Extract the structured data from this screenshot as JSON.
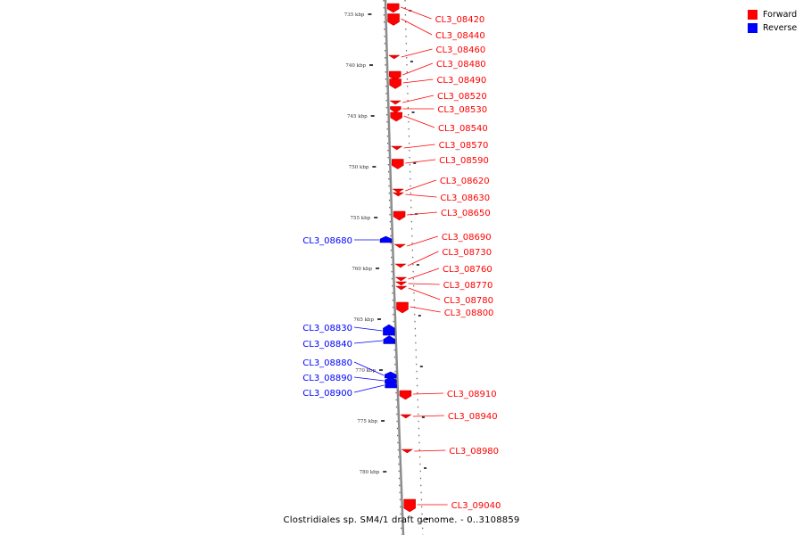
{
  "legend": [
    {
      "label": "Forward",
      "color": "#ff0000"
    },
    {
      "label": "Reverse",
      "color": "#0000ff"
    }
  ],
  "caption": "Clostridiales sp. SM4/1 draft genome. - 0..3108859",
  "scale": {
    "tick_labels": [
      "735 kbp",
      "740 kbp",
      "745 kbp",
      "750 kbp",
      "755 kbp",
      "760 kbp",
      "765 kbp",
      "770 kbp",
      "775 kbp",
      "780 kbp"
    ]
  },
  "genes": [
    {
      "id": "CL3_08420",
      "strand": "forward"
    },
    {
      "id": "CL3_08440",
      "strand": "forward"
    },
    {
      "id": "CL3_08460",
      "strand": "forward"
    },
    {
      "id": "CL3_08480",
      "strand": "forward"
    },
    {
      "id": "CL3_08490",
      "strand": "forward"
    },
    {
      "id": "CL3_08520",
      "strand": "forward"
    },
    {
      "id": "CL3_08530",
      "strand": "forward"
    },
    {
      "id": "CL3_08540",
      "strand": "forward"
    },
    {
      "id": "CL3_08570",
      "strand": "forward"
    },
    {
      "id": "CL3_08590",
      "strand": "forward"
    },
    {
      "id": "CL3_08620",
      "strand": "forward"
    },
    {
      "id": "CL3_08630",
      "strand": "forward"
    },
    {
      "id": "CL3_08650",
      "strand": "forward"
    },
    {
      "id": "CL3_08680",
      "strand": "reverse"
    },
    {
      "id": "CL3_08690",
      "strand": "forward"
    },
    {
      "id": "CL3_08730",
      "strand": "forward"
    },
    {
      "id": "CL3_08760",
      "strand": "forward"
    },
    {
      "id": "CL3_08770",
      "strand": "forward"
    },
    {
      "id": "CL3_08780",
      "strand": "forward"
    },
    {
      "id": "CL3_08800",
      "strand": "forward"
    },
    {
      "id": "CL3_08830",
      "strand": "reverse"
    },
    {
      "id": "CL3_08840",
      "strand": "reverse"
    },
    {
      "id": "CL3_08880",
      "strand": "reverse"
    },
    {
      "id": "CL3_08890",
      "strand": "reverse"
    },
    {
      "id": "CL3_08900",
      "strand": "reverse"
    },
    {
      "id": "CL3_08910",
      "strand": "forward"
    },
    {
      "id": "CL3_08940",
      "strand": "forward"
    },
    {
      "id": "CL3_08980",
      "strand": "forward"
    },
    {
      "id": "CL3_09040",
      "strand": "forward"
    }
  ]
}
